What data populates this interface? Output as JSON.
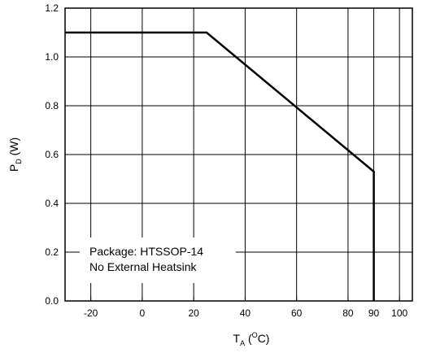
{
  "chart_data": {
    "type": "line",
    "xlabel": {
      "main": "T",
      "sub": "A",
      "open": " (",
      "sup": "O",
      "close": "C)"
    },
    "ylabel": {
      "main": "P",
      "sub": "D",
      "rest": " (W)"
    },
    "xlim": [
      -30,
      105
    ],
    "ylim": [
      0.0,
      1.2
    ],
    "x_ticks": [
      -20,
      0,
      20,
      40,
      60,
      80,
      90,
      100
    ],
    "x_tick_labels": [
      "-20",
      "0",
      "20",
      "40",
      "60",
      "80",
      "90",
      "100"
    ],
    "y_ticks": [
      0.0,
      0.2,
      0.4,
      0.6,
      0.8,
      1.0,
      1.2
    ],
    "y_tick_labels": [
      "0.0",
      "0.2",
      "0.4",
      "0.6",
      "0.8",
      "1.0",
      "1.2"
    ],
    "grid": true,
    "series": [
      {
        "x": [
          -30,
          25,
          90,
          90
        ],
        "y": [
          1.1,
          1.1,
          0.53,
          0.0
        ]
      }
    ],
    "annotations": [
      "Package: HTSSOP-14",
      "No External Heatsink"
    ]
  }
}
